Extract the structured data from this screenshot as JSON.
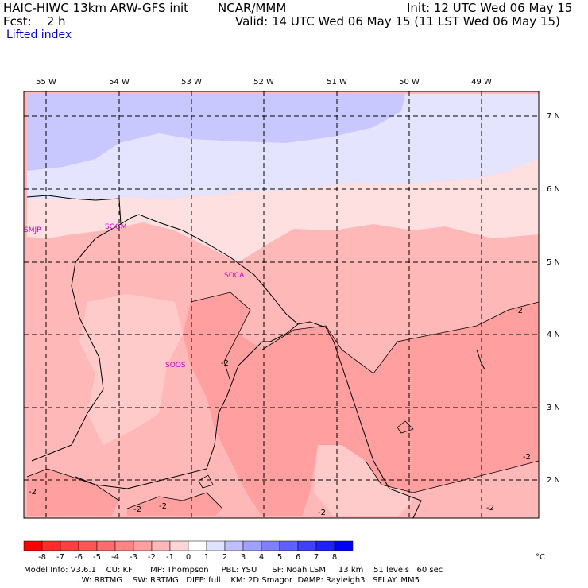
{
  "header": {
    "left_line1": "HAIC-HIWC 13km ARW-GFS init",
    "center_line1": "NCAR/MMM",
    "right_line1": "Init: 12 UTC Wed 06 May 15",
    "left_line2": "Fcst:    2 h",
    "right_line2": "Valid: 14 UTC Wed 06 May 15 (11 LST Wed 06 May 15)",
    "field_name": "Lifted index"
  },
  "map": {
    "lon_labels": [
      "55 W",
      "54 W",
      "53 W",
      "52 W",
      "51 W",
      "50 W",
      "49 W"
    ],
    "lat_labels": [
      "7 N",
      "6 N",
      "5 N",
      "4 N",
      "3 N",
      "2 N"
    ],
    "stations": [
      "SMJP",
      "SOGM",
      "SOCA",
      "SOOS"
    ],
    "contour_label": "-2"
  },
  "colorbar": {
    "labels": [
      "-8",
      "-7",
      "-6",
      "-5",
      "-4",
      "-3",
      "-2",
      "-1",
      "0",
      "1",
      "2",
      "3",
      "4",
      "5",
      "6",
      "7",
      "8"
    ],
    "unit": "°C",
    "colors": [
      "#ff0000",
      "#ff2a2a",
      "#ff4040",
      "#ff5555",
      "#ff6c6c",
      "#ff8585",
      "#ff9f9f",
      "#ffb8b8",
      "#ffd6d6",
      "#ffffff",
      "#e0e0ff",
      "#c0c0ff",
      "#a0a0ff",
      "#8080ff",
      "#6060ff",
      "#4040ff",
      "#2020ff",
      "#0000ff"
    ]
  },
  "footer": {
    "line1": "Model Info: V3.6.1    CU: KF       MP: Thompson     PBL: YSU      SF: Noah LSM     13 km    51 levels   60 sec",
    "line2": "LW: RRTMG    SW: RRTMG   DIFF: full    KM: 2D Smagor  DAMP: Rayleigh3   SFLAY: MM5"
  }
}
